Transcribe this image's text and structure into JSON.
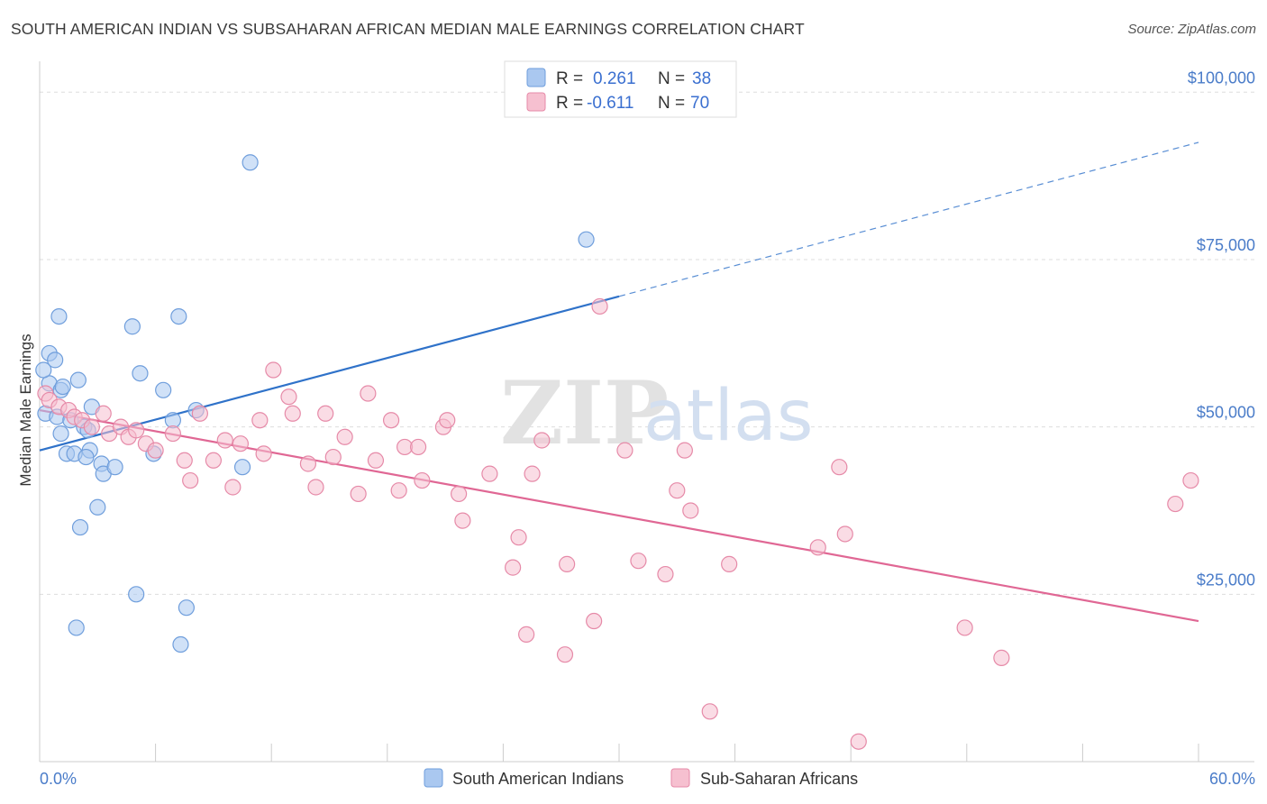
{
  "header": {
    "title": "SOUTH AMERICAN INDIAN VS SUBSAHARAN AFRICAN MEDIAN MALE EARNINGS CORRELATION CHART",
    "source": "Source: ZipAtlas.com"
  },
  "watermark": {
    "part1": "ZIP",
    "part2": "atlas"
  },
  "legend_stats": [
    {
      "r_label": "R =",
      "r_value": "0.261",
      "n_label": "N =",
      "n_value": "38"
    },
    {
      "r_label": "R =",
      "r_value": "-0.611",
      "n_label": "N =",
      "n_value": "70"
    }
  ],
  "colors": {
    "blue_fill": "#aac8f0",
    "blue_stroke": "#6f9edc",
    "blue_line": "#2f72c9",
    "pink_fill": "#f6c0d0",
    "pink_stroke": "#e68aa8",
    "pink_line": "#e06794",
    "tick_text": "#4a7cc9",
    "grid": "#dddddd"
  },
  "chart_data": {
    "type": "scatter",
    "title": "SOUTH AMERICAN INDIAN VS SUBSAHARAN AFRICAN MEDIAN MALE EARNINGS CORRELATION CHART",
    "xlabel": "",
    "ylabel": "Median Male Earnings",
    "xlim": [
      0,
      60
    ],
    "ylim": [
      0,
      103000
    ],
    "x_tick_labels": [
      "0.0%",
      "60.0%"
    ],
    "y_ticks": [
      25000,
      50000,
      75000,
      100000
    ],
    "y_tick_labels": [
      "$25,000",
      "$50,000",
      "$75,000",
      "$100,000"
    ],
    "grid": true,
    "legend_position": "bottom",
    "series": [
      {
        "name": "South American Indians",
        "color": "blue",
        "points": [
          [
            0.3,
            52000
          ],
          [
            0.5,
            56500
          ],
          [
            0.2,
            58500
          ],
          [
            0.5,
            61000
          ],
          [
            0.8,
            60000
          ],
          [
            1.0,
            66500
          ],
          [
            1.1,
            55500
          ],
          [
            0.9,
            51500
          ],
          [
            1.1,
            49000
          ],
          [
            1.6,
            51000
          ],
          [
            1.4,
            46000
          ],
          [
            1.8,
            46000
          ],
          [
            2.0,
            57000
          ],
          [
            2.3,
            50000
          ],
          [
            2.5,
            49500
          ],
          [
            2.6,
            46500
          ],
          [
            2.4,
            45500
          ],
          [
            2.7,
            53000
          ],
          [
            3.2,
            44500
          ],
          [
            3.3,
            43000
          ],
          [
            3.9,
            44000
          ],
          [
            2.1,
            35000
          ],
          [
            3.0,
            38000
          ],
          [
            1.9,
            20000
          ],
          [
            4.8,
            65000
          ],
          [
            5.2,
            58000
          ],
          [
            5.0,
            25000
          ],
          [
            5.9,
            46000
          ],
          [
            6.4,
            55500
          ],
          [
            6.9,
            51000
          ],
          [
            7.2,
            66500
          ],
          [
            7.3,
            17500
          ],
          [
            7.6,
            23000
          ],
          [
            8.1,
            52500
          ],
          [
            10.5,
            44000
          ],
          [
            10.9,
            89500
          ],
          [
            28.3,
            78000
          ],
          [
            1.2,
            56000
          ]
        ]
      },
      {
        "name": "Sub-Saharan Africans",
        "color": "pink",
        "points": [
          [
            0.3,
            55000
          ],
          [
            0.5,
            54000
          ],
          [
            1.0,
            53000
          ],
          [
            1.5,
            52500
          ],
          [
            1.8,
            51500
          ],
          [
            2.2,
            51000
          ],
          [
            2.7,
            50000
          ],
          [
            3.3,
            52000
          ],
          [
            3.6,
            49000
          ],
          [
            4.2,
            50000
          ],
          [
            4.6,
            48500
          ],
          [
            5.0,
            49500
          ],
          [
            5.5,
            47500
          ],
          [
            6.0,
            46500
          ],
          [
            6.9,
            49000
          ],
          [
            7.8,
            42000
          ],
          [
            7.5,
            45000
          ],
          [
            8.3,
            52000
          ],
          [
            9.0,
            45000
          ],
          [
            9.6,
            48000
          ],
          [
            10.0,
            41000
          ],
          [
            10.4,
            47500
          ],
          [
            11.4,
            51000
          ],
          [
            11.6,
            46000
          ],
          [
            12.1,
            58500
          ],
          [
            12.9,
            54500
          ],
          [
            13.1,
            52000
          ],
          [
            13.9,
            44500
          ],
          [
            14.3,
            41000
          ],
          [
            14.8,
            52000
          ],
          [
            15.2,
            45500
          ],
          [
            15.8,
            48500
          ],
          [
            16.5,
            40000
          ],
          [
            17.0,
            55000
          ],
          [
            17.4,
            45000
          ],
          [
            18.2,
            51000
          ],
          [
            18.6,
            40500
          ],
          [
            18.9,
            47000
          ],
          [
            19.6,
            47000
          ],
          [
            19.8,
            42000
          ],
          [
            20.9,
            50000
          ],
          [
            21.1,
            51000
          ],
          [
            21.7,
            40000
          ],
          [
            21.9,
            36000
          ],
          [
            23.3,
            43000
          ],
          [
            24.5,
            29000
          ],
          [
            24.8,
            33500
          ],
          [
            25.5,
            43000
          ],
          [
            25.2,
            19000
          ],
          [
            26.0,
            48000
          ],
          [
            27.2,
            16000
          ],
          [
            27.3,
            29500
          ],
          [
            28.7,
            21000
          ],
          [
            29.0,
            68000
          ],
          [
            30.3,
            46500
          ],
          [
            31.0,
            30000
          ],
          [
            32.4,
            28000
          ],
          [
            33.0,
            40500
          ],
          [
            33.4,
            46500
          ],
          [
            33.7,
            37500
          ],
          [
            34.7,
            7500
          ],
          [
            35.7,
            29500
          ],
          [
            40.3,
            32000
          ],
          [
            41.4,
            44000
          ],
          [
            41.7,
            34000
          ],
          [
            42.4,
            3000
          ],
          [
            47.9,
            20000
          ],
          [
            49.8,
            15500
          ],
          [
            58.8,
            38500
          ],
          [
            59.6,
            42000
          ]
        ]
      }
    ],
    "trendlines": [
      {
        "series": "South American Indians",
        "solid": [
          [
            0,
            46500
          ],
          [
            30,
            69500
          ]
        ],
        "dashed": [
          [
            30,
            69500
          ],
          [
            60,
            92500
          ]
        ]
      },
      {
        "series": "Sub-Saharan Africans",
        "solid": [
          [
            0,
            52500
          ],
          [
            60,
            21000
          ]
        ]
      }
    ]
  }
}
